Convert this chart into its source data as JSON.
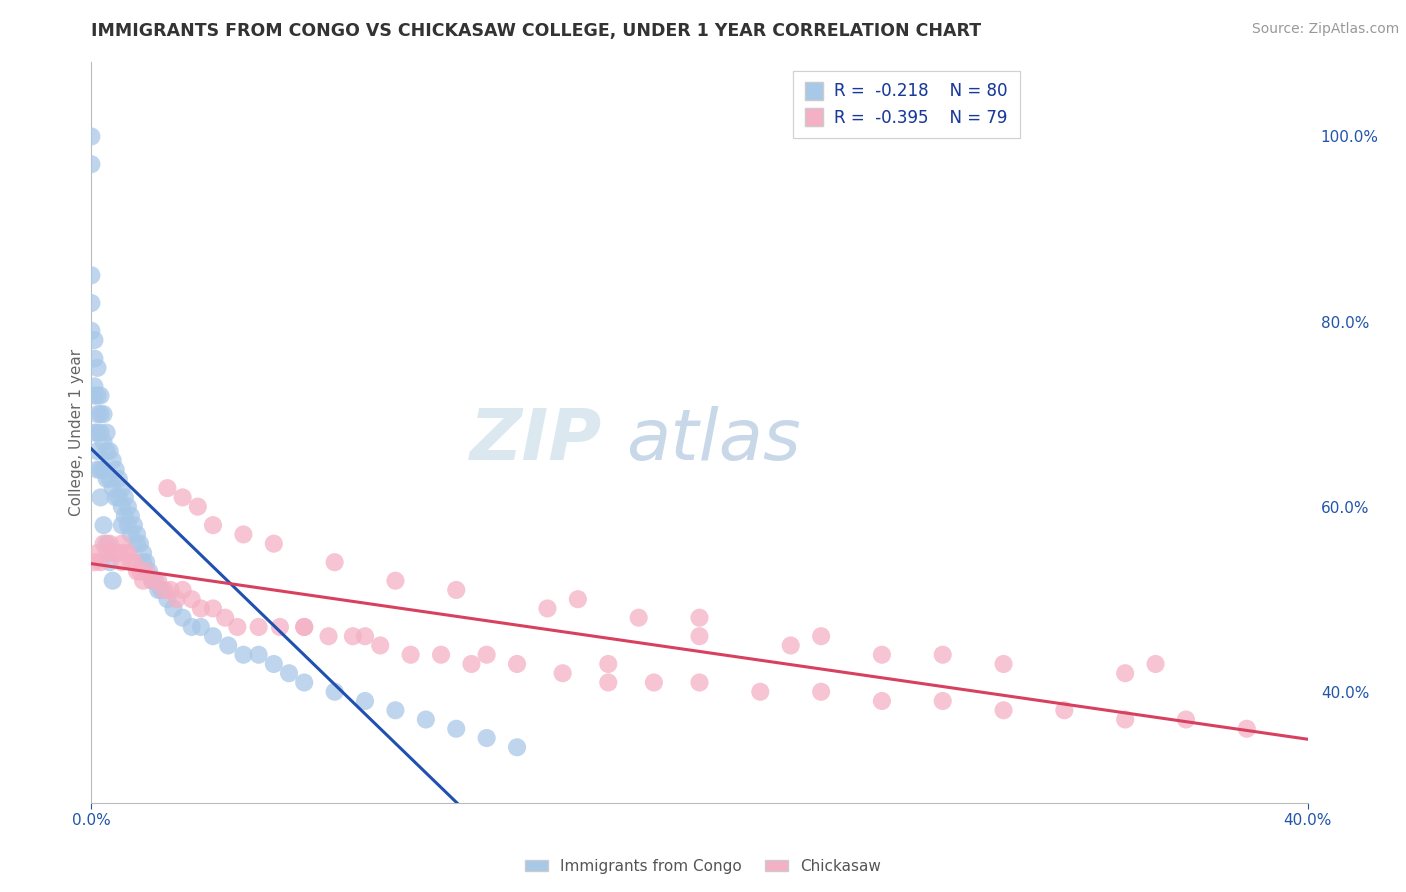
{
  "title": "IMMIGRANTS FROM CONGO VS CHICKASAW COLLEGE, UNDER 1 YEAR CORRELATION CHART",
  "source": "Source: ZipAtlas.com",
  "ylabel": "College, Under 1 year",
  "legend_label1": "Immigrants from Congo",
  "legend_label2": "Chickasaw",
  "color_blue": "#a8c8e8",
  "color_pink": "#f4b0c4",
  "line_blue": "#2050b0",
  "line_pink": "#d84060",
  "background": "#ffffff",
  "gridline_color": "#c8d8ec",
  "xlim": [
    0.0,
    0.4
  ],
  "ylim": [
    0.28,
    1.08
  ],
  "yticks_right": [
    0.4,
    0.6,
    0.8,
    1.0
  ],
  "xticks": [
    0.0,
    0.4
  ],
  "blue_x": [
    0.0,
    0.0,
    0.0,
    0.001,
    0.001,
    0.001,
    0.001,
    0.002,
    0.002,
    0.002,
    0.002,
    0.003,
    0.003,
    0.003,
    0.003,
    0.004,
    0.004,
    0.004,
    0.005,
    0.005,
    0.005,
    0.006,
    0.006,
    0.007,
    0.007,
    0.008,
    0.008,
    0.009,
    0.009,
    0.01,
    0.01,
    0.01,
    0.011,
    0.011,
    0.012,
    0.012,
    0.013,
    0.013,
    0.014,
    0.015,
    0.015,
    0.016,
    0.017,
    0.017,
    0.018,
    0.019,
    0.02,
    0.021,
    0.022,
    0.023,
    0.025,
    0.027,
    0.03,
    0.033,
    0.036,
    0.04,
    0.045,
    0.05,
    0.055,
    0.06,
    0.065,
    0.07,
    0.08,
    0.09,
    0.1,
    0.11,
    0.12,
    0.13,
    0.14,
    0.0,
    0.0,
    0.001,
    0.002,
    0.002,
    0.003,
    0.004,
    0.005,
    0.006,
    0.007
  ],
  "blue_y": [
    1.0,
    0.97,
    0.82,
    0.78,
    0.76,
    0.72,
    0.68,
    0.75,
    0.72,
    0.7,
    0.66,
    0.72,
    0.7,
    0.68,
    0.64,
    0.7,
    0.67,
    0.64,
    0.68,
    0.66,
    0.63,
    0.66,
    0.63,
    0.65,
    0.62,
    0.64,
    0.61,
    0.63,
    0.61,
    0.62,
    0.6,
    0.58,
    0.61,
    0.59,
    0.6,
    0.58,
    0.59,
    0.57,
    0.58,
    0.57,
    0.56,
    0.56,
    0.55,
    0.54,
    0.54,
    0.53,
    0.52,
    0.52,
    0.51,
    0.51,
    0.5,
    0.49,
    0.48,
    0.47,
    0.47,
    0.46,
    0.45,
    0.44,
    0.44,
    0.43,
    0.42,
    0.41,
    0.4,
    0.39,
    0.38,
    0.37,
    0.36,
    0.35,
    0.34,
    0.85,
    0.79,
    0.73,
    0.68,
    0.64,
    0.61,
    0.58,
    0.56,
    0.54,
    0.52
  ],
  "pink_x": [
    0.001,
    0.002,
    0.003,
    0.004,
    0.005,
    0.006,
    0.007,
    0.008,
    0.009,
    0.01,
    0.01,
    0.011,
    0.012,
    0.013,
    0.014,
    0.015,
    0.016,
    0.017,
    0.018,
    0.02,
    0.022,
    0.024,
    0.026,
    0.028,
    0.03,
    0.033,
    0.036,
    0.04,
    0.044,
    0.048,
    0.055,
    0.062,
    0.07,
    0.078,
    0.086,
    0.095,
    0.105,
    0.115,
    0.125,
    0.14,
    0.155,
    0.17,
    0.185,
    0.2,
    0.22,
    0.24,
    0.26,
    0.28,
    0.3,
    0.32,
    0.34,
    0.36,
    0.38,
    0.025,
    0.03,
    0.035,
    0.04,
    0.05,
    0.06,
    0.08,
    0.1,
    0.12,
    0.15,
    0.18,
    0.2,
    0.23,
    0.26,
    0.3,
    0.34,
    0.16,
    0.2,
    0.24,
    0.28,
    0.35,
    0.07,
    0.09,
    0.13,
    0.17
  ],
  "pink_y": [
    0.54,
    0.55,
    0.54,
    0.56,
    0.55,
    0.56,
    0.55,
    0.55,
    0.55,
    0.56,
    0.54,
    0.55,
    0.55,
    0.54,
    0.54,
    0.53,
    0.53,
    0.52,
    0.53,
    0.52,
    0.52,
    0.51,
    0.51,
    0.5,
    0.51,
    0.5,
    0.49,
    0.49,
    0.48,
    0.47,
    0.47,
    0.47,
    0.47,
    0.46,
    0.46,
    0.45,
    0.44,
    0.44,
    0.43,
    0.43,
    0.42,
    0.41,
    0.41,
    0.41,
    0.4,
    0.4,
    0.39,
    0.39,
    0.38,
    0.38,
    0.37,
    0.37,
    0.36,
    0.62,
    0.61,
    0.6,
    0.58,
    0.57,
    0.56,
    0.54,
    0.52,
    0.51,
    0.49,
    0.48,
    0.46,
    0.45,
    0.44,
    0.43,
    0.42,
    0.5,
    0.48,
    0.46,
    0.44,
    0.43,
    0.47,
    0.46,
    0.44,
    0.43
  ],
  "watermark_color": "#dce8f0",
  "watermark_fontsize": 52
}
